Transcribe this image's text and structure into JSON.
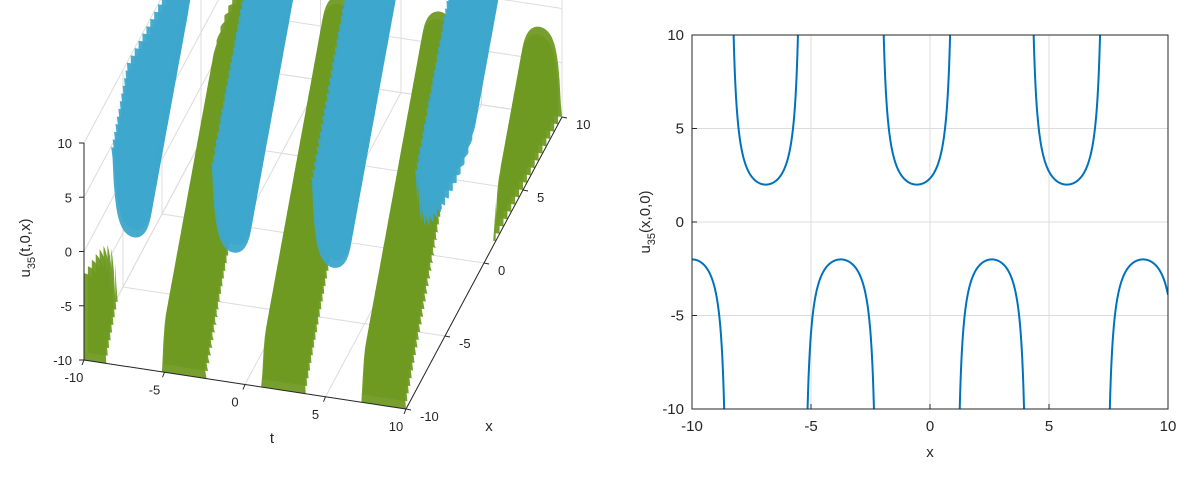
{
  "colors": {
    "axis": "#262626",
    "grid": "#dcdcdc",
    "line": "#0072bd",
    "surface_upper": "#3da6cc",
    "surface_lower": "#6f9a22",
    "surface_top_cap": "#7a1030",
    "surface_bottom_cap": "#4a2a6a"
  },
  "chart_data": [
    {
      "type": "surface",
      "title": "",
      "xlabel": "t",
      "ylabel": "x",
      "zlabel": "u_35(t,0,x)",
      "zlabel_main": "u",
      "zlabel_sub": "35",
      "zlabel_rest": "(t,0,x)",
      "xlim": [
        -10,
        10
      ],
      "ylim": [
        -10,
        10
      ],
      "zlim": [
        -10,
        10
      ],
      "x_ticks": [
        "-10",
        "-5",
        "0",
        "5",
        "10"
      ],
      "y_ticks": [
        "-10",
        "-5",
        "0",
        "5",
        "10"
      ],
      "z_ticks": [
        "-10",
        "-5",
        "0",
        "5",
        "10"
      ],
      "grid": true
    },
    {
      "type": "line",
      "title": "",
      "xlabel": "x",
      "ylabel": "u_35(x,0,0)",
      "ylabel_main": "u",
      "ylabel_sub": "35",
      "ylabel_rest": "(x,0,0)",
      "xlim": [
        -10,
        10
      ],
      "ylim": [
        -10,
        10
      ],
      "x_ticks": [
        "-10",
        "-5",
        "0",
        "5",
        "10"
      ],
      "y_ticks": [
        "-10",
        "-5",
        "0",
        "5",
        "10"
      ],
      "grid": true,
      "series": [
        {
          "singularities": [
            -8.45,
            -5.35,
            -2.15,
            1.05,
            4.15,
            7.35
          ],
          "lower_branch_peaks": [
            [
              -10,
              -2.0
            ],
            [
              -3.75,
              -2.0
            ],
            [
              2.5,
              -2.0
            ],
            [
              8.8,
              -2.0
            ]
          ],
          "upper_branch_minima": [
            [
              -6.9,
              2.0
            ],
            [
              -0.55,
              2.0
            ],
            [
              5.7,
              2.0
            ]
          ]
        }
      ]
    }
  ]
}
